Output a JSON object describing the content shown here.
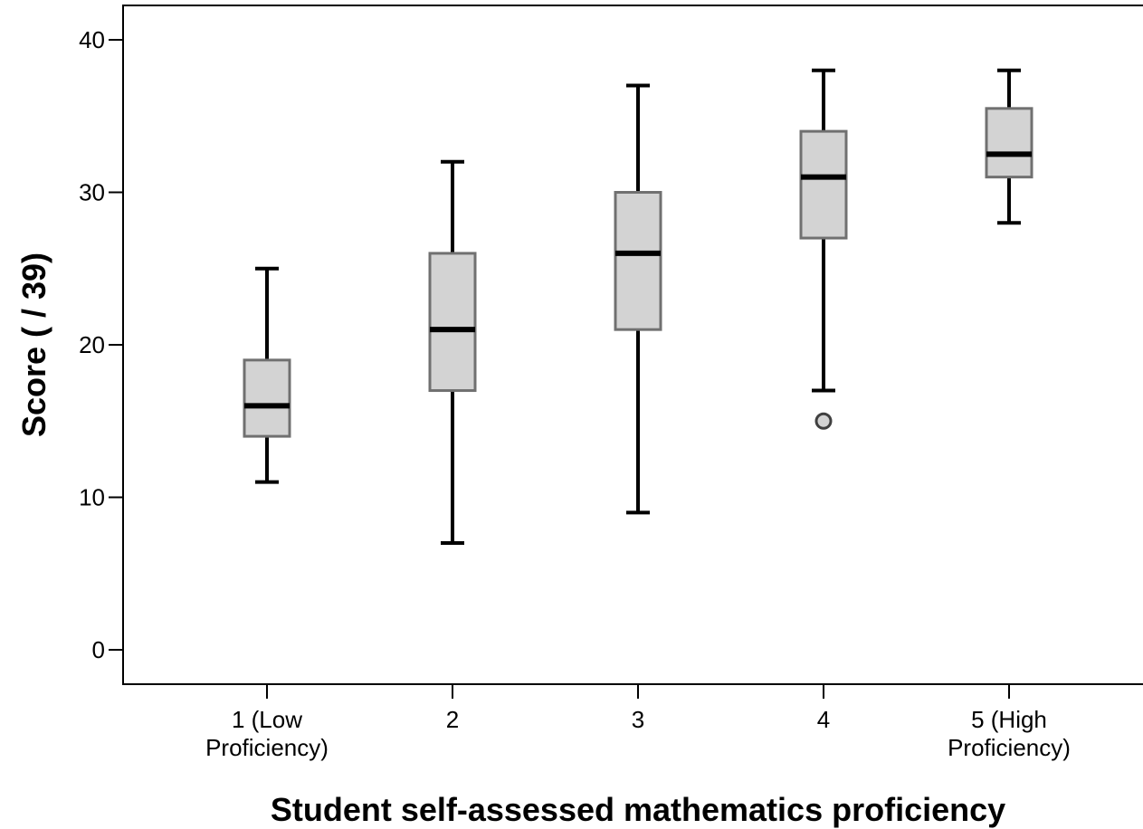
{
  "chart_data": {
    "type": "boxplot",
    "xlabel": "Student self-assessed mathematics proficiency",
    "ylabel": "Score  ( / 39)",
    "ylim": [
      0,
      40
    ],
    "yticks": [
      0,
      10,
      20,
      30,
      40
    ],
    "categories": [
      {
        "line1": "1 (Low",
        "line2": "Proficiency)",
        "min": 11,
        "q1": 14,
        "median": 16,
        "q3": 19,
        "max": 25,
        "outliers": []
      },
      {
        "line1": "2",
        "line2": "",
        "min": 7,
        "q1": 17,
        "median": 21,
        "q3": 26,
        "max": 32,
        "outliers": []
      },
      {
        "line1": "3",
        "line2": "",
        "min": 9,
        "q1": 21,
        "median": 26,
        "q3": 30,
        "max": 37,
        "outliers": []
      },
      {
        "line1": "4",
        "line2": "",
        "min": 17,
        "q1": 27,
        "median": 31,
        "q3": 34,
        "max": 38,
        "outliers": [
          15
        ]
      },
      {
        "line1": "5 (High",
        "line2": "Proficiency)",
        "min": 28,
        "q1": 31,
        "median": 32.5,
        "q3": 35.5,
        "max": 38,
        "outliers": []
      }
    ],
    "colors": {
      "box_fill": "#d3d3d3",
      "box_stroke": "#707070",
      "line": "#000000"
    },
    "grid": false,
    "legend": "none"
  }
}
